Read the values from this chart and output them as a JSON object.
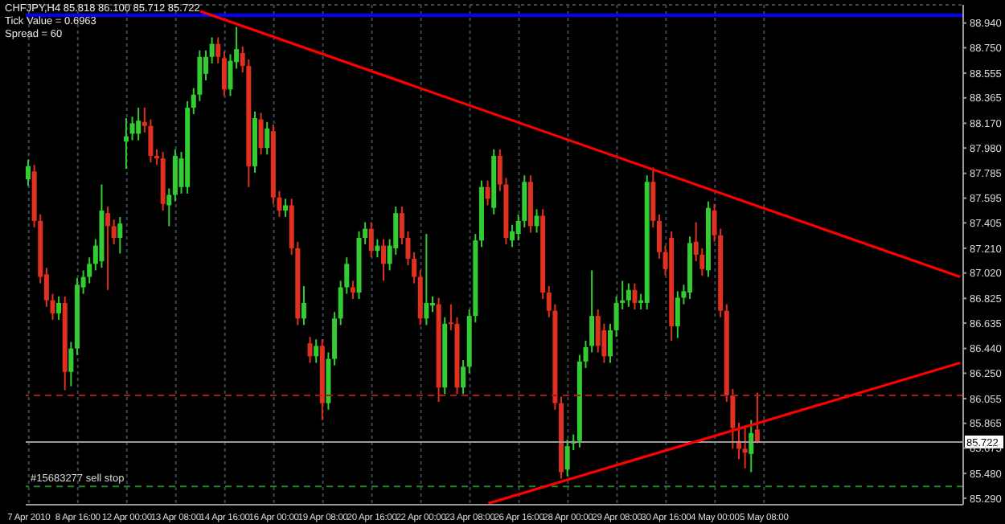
{
  "chart_data": {
    "type": "candlestick",
    "annotations": [
      "CHFJPY,H4  85.818 86.100 85.712 85.722",
      "Tick Value = 0.6963",
      "Spread = 60"
    ],
    "categories": [
      "7 Apr 2010",
      null,
      null,
      null,
      null,
      null,
      null,
      null,
      "8 Apr 16:00",
      null,
      null,
      null,
      null,
      null,
      null,
      null,
      "12 Apr 00:00",
      null,
      null,
      null,
      null,
      null,
      null,
      null,
      "13 Apr 08:00",
      null,
      null,
      null,
      null,
      null,
      null,
      null,
      "14 Apr 16:00",
      null,
      null,
      null,
      null,
      null,
      null,
      null,
      "16 Apr 00:00",
      null,
      null,
      null,
      null,
      null,
      null,
      null,
      "19 Apr 08:00",
      null,
      null,
      null,
      null,
      null,
      null,
      null,
      "20 Apr 16:00",
      null,
      null,
      null,
      null,
      null,
      null,
      null,
      "22 Apr 00:00",
      null,
      null,
      null,
      null,
      null,
      null,
      null,
      "23 Apr 08:00",
      null,
      null,
      null,
      null,
      null,
      null,
      null,
      "26 Apr 16:00",
      null,
      null,
      null,
      null,
      null,
      null,
      null,
      "28 Apr 00:00",
      null,
      null,
      null,
      null,
      null,
      null,
      null,
      "29 Apr 08:00",
      null,
      null,
      null,
      null,
      null,
      null,
      null,
      "30 Apr 16:00",
      null,
      null,
      null,
      null,
      null,
      null,
      null,
      "4 May 00:00",
      null,
      null,
      null,
      null,
      null,
      null,
      null,
      "5 May 08:00",
      null,
      null,
      null,
      null,
      null,
      null,
      null,
      null,
      null,
      null,
      null,
      null,
      null,
      null,
      null,
      null,
      null,
      null,
      null,
      null,
      null,
      null,
      null,
      null,
      null,
      null,
      null,
      null,
      null,
      null,
      null,
      null
    ],
    "ohlc": [
      [
        87.74,
        87.89,
        87.69,
        87.84
      ],
      [
        87.8,
        87.85,
        87.37,
        87.42
      ],
      [
        87.42,
        87.47,
        86.94,
        86.99
      ],
      [
        87.01,
        87.06,
        86.76,
        86.81
      ],
      [
        86.81,
        86.86,
        86.66,
        86.71
      ],
      [
        86.71,
        86.84,
        86.66,
        86.79
      ],
      [
        86.79,
        86.84,
        86.12,
        86.26
      ],
      [
        86.26,
        86.49,
        86.15,
        86.44
      ],
      [
        86.44,
        86.98,
        86.39,
        86.93
      ],
      [
        86.91,
        87.04,
        86.86,
        86.99
      ],
      [
        86.99,
        87.14,
        86.94,
        87.09
      ],
      [
        87.09,
        87.28,
        87.04,
        87.23
      ],
      [
        87.11,
        87.7,
        87.06,
        87.5
      ],
      [
        87.48,
        87.53,
        86.89,
        87.38
      ],
      [
        87.38,
        87.43,
        87.24,
        87.29
      ],
      [
        87.29,
        87.45,
        87.17,
        87.4
      ],
      [
        88.03,
        88.21,
        87.82,
        88.07
      ],
      [
        88.09,
        88.22,
        88.04,
        88.17
      ],
      [
        88.09,
        88.29,
        88.04,
        88.19
      ],
      [
        88.18,
        88.29,
        88.1,
        88.15
      ],
      [
        88.15,
        88.2,
        87.87,
        87.92
      ],
      [
        87.92,
        87.97,
        87.85,
        87.9
      ],
      [
        87.9,
        87.95,
        87.5,
        87.55
      ],
      [
        87.54,
        87.67,
        87.38,
        87.62
      ],
      [
        87.62,
        87.97,
        87.57,
        87.92
      ],
      [
        87.68,
        87.95,
        87.63,
        87.9
      ],
      [
        87.68,
        88.34,
        87.63,
        88.29
      ],
      [
        88.29,
        88.44,
        88.24,
        88.39
      ],
      [
        88.39,
        88.73,
        88.34,
        88.68
      ],
      [
        88.55,
        88.73,
        88.5,
        88.68
      ],
      [
        88.68,
        88.83,
        88.63,
        88.78
      ],
      [
        88.78,
        88.83,
        88.63,
        88.68
      ],
      [
        88.67,
        88.72,
        88.38,
        88.43
      ],
      [
        88.43,
        88.7,
        88.38,
        88.65
      ],
      [
        88.64,
        88.91,
        88.59,
        88.74
      ],
      [
        88.71,
        88.76,
        88.56,
        88.61
      ],
      [
        88.61,
        88.66,
        87.68,
        87.84
      ],
      [
        87.84,
        88.26,
        87.79,
        88.21
      ],
      [
        88.2,
        88.25,
        87.93,
        87.98
      ],
      [
        87.98,
        88.18,
        87.93,
        88.13
      ],
      [
        88.11,
        88.16,
        87.55,
        87.6
      ],
      [
        87.6,
        87.65,
        87.45,
        87.5
      ],
      [
        87.5,
        87.59,
        87.45,
        87.54
      ],
      [
        87.54,
        87.59,
        87.16,
        87.21
      ],
      [
        87.21,
        87.26,
        86.62,
        86.67
      ],
      [
        86.67,
        86.92,
        86.62,
        86.79
      ],
      [
        86.48,
        86.53,
        86.33,
        86.38
      ],
      [
        86.38,
        86.51,
        86.33,
        86.46
      ],
      [
        86.46,
        86.51,
        85.89,
        86.02
      ],
      [
        86.02,
        86.41,
        85.97,
        86.36
      ],
      [
        86.36,
        86.72,
        86.31,
        86.67
      ],
      [
        86.67,
        86.96,
        86.62,
        86.91
      ],
      [
        86.91,
        87.14,
        86.86,
        87.09
      ],
      [
        86.91,
        86.96,
        86.82,
        86.87
      ],
      [
        86.87,
        87.34,
        86.82,
        87.29
      ],
      [
        87.29,
        87.41,
        87.24,
        87.36
      ],
      [
        87.36,
        87.41,
        87.14,
        87.19
      ],
      [
        87.19,
        87.28,
        87.14,
        87.23
      ],
      [
        87.23,
        87.28,
        86.96,
        87.09
      ],
      [
        87.09,
        87.28,
        87.04,
        87.23
      ],
      [
        87.21,
        87.53,
        87.16,
        87.48
      ],
      [
        87.48,
        87.53,
        87.24,
        87.29
      ],
      [
        87.29,
        87.34,
        87.08,
        87.13
      ],
      [
        87.13,
        87.18,
        86.94,
        86.99
      ],
      [
        86.99,
        87.04,
        86.62,
        86.67
      ],
      [
        86.67,
        87.32,
        86.62,
        86.79
      ],
      [
        86.77,
        86.84,
        86.72,
        86.79
      ],
      [
        86.78,
        86.83,
        86.03,
        86.14
      ],
      [
        86.14,
        86.68,
        86.09,
        86.63
      ],
      [
        86.64,
        86.78,
        86.58,
        86.63
      ],
      [
        86.63,
        86.68,
        86.09,
        86.14
      ],
      [
        86.14,
        86.35,
        86.09,
        86.3
      ],
      [
        86.3,
        86.74,
        86.25,
        86.69
      ],
      [
        86.69,
        87.32,
        86.64,
        87.27
      ],
      [
        87.27,
        87.73,
        87.22,
        87.68
      ],
      [
        87.68,
        87.73,
        87.54,
        87.59
      ],
      [
        87.52,
        87.97,
        87.47,
        87.92
      ],
      [
        87.92,
        87.97,
        87.65,
        87.7
      ],
      [
        87.7,
        87.75,
        87.24,
        87.29
      ],
      [
        87.27,
        87.39,
        87.22,
        87.34
      ],
      [
        87.32,
        87.47,
        87.27,
        87.42
      ],
      [
        87.42,
        87.77,
        87.37,
        87.72
      ],
      [
        87.72,
        87.77,
        87.33,
        87.38
      ],
      [
        87.38,
        87.51,
        87.33,
        87.46
      ],
      [
        87.46,
        87.51,
        86.82,
        86.87
      ],
      [
        86.87,
        86.92,
        86.68,
        86.73
      ],
      [
        86.73,
        86.78,
        85.97,
        86.02
      ],
      [
        86.02,
        86.07,
        85.44,
        85.49
      ],
      [
        85.51,
        85.74,
        85.46,
        85.69
      ],
      [
        85.71,
        85.78,
        85.66,
        85.73
      ],
      [
        85.73,
        86.39,
        85.68,
        86.34
      ],
      [
        86.34,
        86.5,
        86.29,
        86.45
      ],
      [
        86.46,
        87.04,
        86.41,
        86.69
      ],
      [
        86.69,
        86.74,
        86.41,
        86.46
      ],
      [
        86.58,
        86.63,
        86.33,
        86.38
      ],
      [
        86.38,
        86.63,
        86.33,
        86.58
      ],
      [
        86.58,
        86.84,
        86.53,
        86.79
      ],
      [
        86.79,
        86.96,
        86.74,
        86.81
      ],
      [
        86.81,
        86.94,
        86.76,
        86.89
      ],
      [
        86.89,
        86.94,
        86.74,
        86.79
      ],
      [
        86.79,
        86.86,
        86.74,
        86.81
      ],
      [
        86.79,
        87.77,
        86.74,
        87.72
      ],
      [
        87.72,
        87.83,
        87.37,
        87.42
      ],
      [
        87.42,
        87.47,
        87.13,
        87.18
      ],
      [
        87.18,
        87.23,
        87.0,
        87.05
      ],
      [
        87.29,
        87.34,
        86.5,
        86.61
      ],
      [
        86.61,
        86.88,
        86.52,
        86.83
      ],
      [
        86.83,
        86.93,
        86.78,
        86.88
      ],
      [
        86.87,
        87.3,
        86.82,
        87.25
      ],
      [
        87.26,
        87.41,
        87.11,
        87.16
      ],
      [
        87.16,
        87.21,
        87.0,
        87.05
      ],
      [
        87.04,
        87.57,
        86.99,
        87.52
      ],
      [
        87.5,
        87.55,
        87.26,
        87.31
      ],
      [
        87.31,
        87.36,
        86.68,
        86.73
      ],
      [
        86.73,
        86.78,
        86.03,
        86.08
      ],
      [
        86.08,
        86.13,
        85.67,
        85.83
      ],
      [
        85.73,
        85.87,
        85.59,
        85.67
      ],
      [
        85.67,
        85.85,
        85.52,
        85.64
      ],
      [
        85.63,
        85.89,
        85.49,
        85.79
      ],
      [
        85.818,
        86.1,
        85.712,
        85.722
      ],
      null,
      null,
      null,
      null,
      null,
      null,
      null,
      null,
      null,
      null,
      null,
      null,
      null,
      null,
      null,
      null,
      null,
      null,
      null,
      null,
      null,
      null,
      null,
      null,
      null,
      null,
      null,
      null,
      null,
      null,
      null,
      null,
      null
    ],
    "colors": [
      "#33cc33",
      "#e03020",
      "#e03020",
      "#e03020",
      "#e03020",
      "#33cc33",
      "#e03020",
      "#33cc33",
      "#33cc33",
      "#33cc33",
      "#33cc33",
      "#33cc33",
      "#33cc33",
      "#e03020",
      "#e03020",
      "#33cc33",
      "#33cc33",
      "#33cc33",
      "#33cc33",
      "#e03020",
      "#e03020",
      "#e03020",
      "#e03020",
      "#33cc33",
      "#33cc33",
      "#33cc33",
      "#33cc33",
      "#33cc33",
      "#33cc33",
      "#33cc33",
      "#33cc33",
      "#e03020",
      "#e03020",
      "#33cc33",
      "#33cc33",
      "#e03020",
      "#e03020",
      "#33cc33",
      "#e03020",
      "#33cc33",
      "#e03020",
      "#e03020",
      "#33cc33",
      "#e03020",
      "#e03020",
      "#33cc33",
      "#e03020",
      "#33cc33",
      "#e03020",
      "#33cc33",
      "#33cc33",
      "#33cc33",
      "#33cc33",
      "#e03020",
      "#33cc33",
      "#33cc33",
      "#e03020",
      "#33cc33",
      "#e03020",
      "#33cc33",
      "#33cc33",
      "#e03020",
      "#e03020",
      "#e03020",
      "#e03020",
      "#33cc33",
      "#33cc33",
      "#e03020",
      "#33cc33",
      "#e03020",
      "#e03020",
      "#33cc33",
      "#33cc33",
      "#33cc33",
      "#33cc33",
      "#e03020",
      "#33cc33",
      "#e03020",
      "#e03020",
      "#33cc33",
      "#33cc33",
      "#33cc33",
      "#e03020",
      "#33cc33",
      "#e03020",
      "#e03020",
      "#e03020",
      "#e03020",
      "#33cc33",
      "#33cc33",
      "#33cc33",
      "#33cc33",
      "#33cc33",
      "#e03020",
      "#e03020",
      "#33cc33",
      "#33cc33",
      "#33cc33",
      "#33cc33",
      "#e03020",
      "#33cc33",
      "#33cc33",
      "#e03020",
      "#e03020",
      "#e03020",
      "#e03020",
      "#33cc33",
      "#33cc33",
      "#33cc33",
      "#e03020",
      "#e03020",
      "#33cc33",
      "#e03020",
      "#e03020",
      "#e03020",
      "#e03020",
      "#e03020",
      "#e03020",
      "#33cc33",
      "#e03020",
      null,
      null,
      null,
      null,
      null,
      null,
      null,
      null,
      null,
      null,
      null,
      null,
      null,
      null,
      null,
      null,
      null,
      null,
      null,
      null,
      null,
      null,
      null,
      null,
      null,
      null,
      null,
      null,
      null,
      null,
      null,
      null,
      null
    ],
    "series": [
      {
        "type": "line",
        "color": "#ff0000",
        "values": [
          null,
          null,
          null,
          null,
          null,
          null,
          null,
          null,
          null,
          null,
          null,
          null,
          null,
          null,
          null,
          null,
          null,
          null,
          null,
          null,
          null,
          null,
          null,
          null,
          null,
          null,
          null,
          null,
          89.03,
          null,
          null,
          null,
          null,
          null,
          null,
          null,
          null,
          null,
          null,
          null,
          null,
          null,
          null,
          null,
          null,
          null,
          null,
          null,
          null,
          null,
          null,
          null,
          null,
          null,
          null,
          null,
          null,
          null,
          null,
          null,
          null,
          null,
          null,
          null,
          null,
          null,
          null,
          null,
          null,
          null,
          null,
          null,
          null,
          null,
          null,
          null,
          null,
          null,
          null,
          null,
          null,
          null,
          null,
          null,
          null,
          null,
          null,
          null,
          null,
          null,
          null,
          null,
          null,
          null,
          null,
          null,
          null,
          null,
          null,
          null,
          null,
          null,
          null,
          null,
          null,
          null,
          null,
          null,
          null,
          null,
          null,
          null,
          null,
          null,
          null,
          null,
          null,
          null,
          null,
          null,
          null,
          null,
          null,
          null,
          null,
          null,
          null,
          null,
          null,
          null,
          null,
          null,
          null,
          null,
          null,
          null,
          null,
          null,
          null,
          null,
          null,
          null,
          null,
          null,
          null,
          null,
          null,
          null,
          null,
          null,
          null,
          null,
          86.99
        ]
      },
      {
        "type": "line",
        "color": "#ff0000",
        "values": [
          null,
          null,
          null,
          null,
          null,
          null,
          null,
          null,
          null,
          null,
          null,
          null,
          null,
          null,
          null,
          null,
          null,
          null,
          null,
          null,
          null,
          null,
          null,
          null,
          null,
          null,
          null,
          null,
          null,
          null,
          null,
          null,
          null,
          null,
          null,
          null,
          null,
          null,
          null,
          null,
          null,
          null,
          null,
          null,
          null,
          null,
          null,
          null,
          null,
          null,
          null,
          null,
          null,
          null,
          null,
          null,
          null,
          null,
          null,
          null,
          null,
          null,
          null,
          null,
          null,
          null,
          null,
          null,
          null,
          null,
          null,
          null,
          null,
          null,
          null,
          85.25,
          null,
          null,
          null,
          null,
          null,
          null,
          null,
          null,
          null,
          null,
          null,
          null,
          null,
          null,
          null,
          null,
          null,
          null,
          null,
          null,
          null,
          null,
          null,
          null,
          null,
          null,
          null,
          null,
          null,
          null,
          null,
          null,
          null,
          null,
          null,
          null,
          null,
          null,
          null,
          null,
          null,
          null,
          null,
          null,
          null,
          null,
          null,
          null,
          null,
          null,
          null,
          null,
          null,
          null,
          null,
          null,
          null,
          null,
          null,
          null,
          null,
          null,
          null,
          null,
          null,
          null,
          null,
          null,
          null,
          null,
          null,
          null,
          null,
          null,
          null,
          null,
          86.33
        ]
      }
    ],
    "ylim": [
      85.24,
      89.08
    ],
    "yticks": [
      {
        "value": 88.94,
        "label": "88.940"
      },
      {
        "value": 88.75,
        "label": "88.750"
      },
      88.555,
      88.365,
      {
        "value": 88.17,
        "label": "88.170"
      },
      {
        "value": 87.98,
        "label": "87.980"
      },
      87.785,
      87.595,
      87.405,
      {
        "value": 87.21,
        "label": "87.210"
      },
      {
        "value": 87.02,
        "label": "87.020"
      },
      86.825,
      86.635,
      {
        "value": 86.44,
        "label": "86.440"
      },
      {
        "value": 86.25,
        "label": "86.250"
      },
      86.055,
      85.865,
      85.675,
      {
        "value": 85.48,
        "label": "85.480"
      },
      {
        "value": 85.29,
        "label": "85.290"
      }
    ],
    "ref_lines": [
      {
        "axis": "y",
        "value": 89.0,
        "color": "#0000ff",
        "line_style": "solid"
      },
      {
        "axis": "y",
        "value": 86.08,
        "color": "#b01818",
        "line_style": "dashed"
      },
      {
        "axis": "y",
        "value": 85.722,
        "label": "85.722",
        "color": "#9a9a9a",
        "line_style": "solid"
      },
      {
        "axis": "y",
        "value": 85.38,
        "label": "#15683277 sell stop",
        "color": "#1c8a1c",
        "line_style": "dashed"
      }
    ],
    "grid": true
  }
}
